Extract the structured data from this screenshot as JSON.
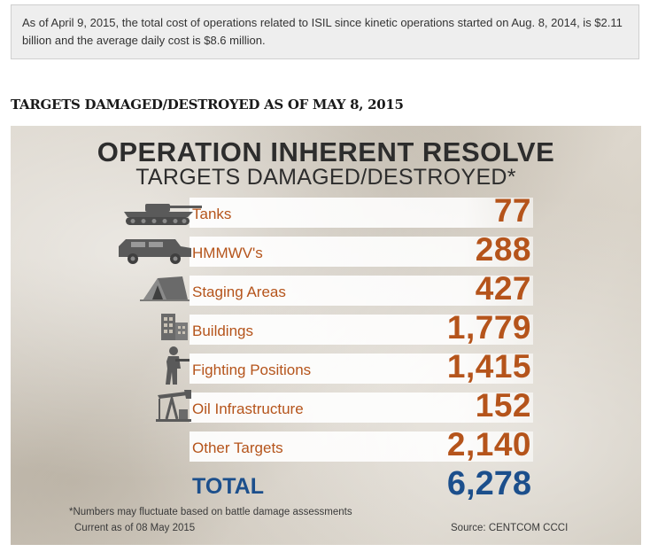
{
  "notice": {
    "text": "As of April 9, 2015, the total cost of operations related to ISIL since kinetic operations started on Aug. 8, 2014, is $2.11 billion and the average daily cost is $8.6 million."
  },
  "section_title": "TARGETS DAMAGED/DESTROYED AS OF MAY 8, 2015",
  "infographic": {
    "title": "OPERATION INHERENT RESOLVE",
    "subtitle": "TARGETS DAMAGED/DESTROYED*",
    "rows": [
      {
        "label": "Tanks",
        "value": "77",
        "icon": "tank-icon"
      },
      {
        "label": "HMMWV's",
        "value": "288",
        "icon": "humvee-icon"
      },
      {
        "label": "Staging Areas",
        "value": "427",
        "icon": "tent-icon"
      },
      {
        "label": "Buildings",
        "value": "1,779",
        "icon": "building-icon"
      },
      {
        "label": "Fighting Positions",
        "value": "1,415",
        "icon": "soldier-icon"
      },
      {
        "label": "Oil Infrastructure",
        "value": "152",
        "icon": "oil-pump-icon"
      },
      {
        "label": "Other Targets",
        "value": "2,140",
        "icon": ""
      }
    ],
    "total": {
      "label": "TOTAL",
      "value": "6,278"
    },
    "footnote": "*Numbers may fluctuate based on battle damage assessments",
    "current_as_of": "Current as of 08 May 2015",
    "source": "Source: CENTCOM CCCI",
    "colors": {
      "row_text": "#b5541b",
      "total_text": "#1c4f8c",
      "title_text": "#2d2d2d"
    }
  }
}
